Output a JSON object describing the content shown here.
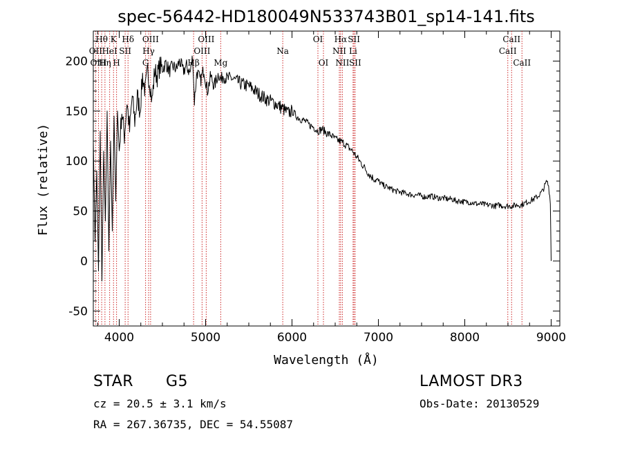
{
  "chart_data": {
    "type": "line",
    "title": "spec-56442-HD180049N533743B01_sp14-141.fits",
    "xlabel": "Wavelength (Å)",
    "ylabel": "Flux (relative)",
    "xlim": [
      3700,
      9100
    ],
    "ylim": [
      -65,
      230
    ],
    "xticks": [
      4000,
      5000,
      6000,
      7000,
      8000,
      9000
    ],
    "yticks": [
      -50,
      0,
      50,
      100,
      150,
      200
    ],
    "series": [
      {
        "name": "spectrum",
        "x": [
          3700,
          3720,
          3740,
          3760,
          3780,
          3800,
          3820,
          3840,
          3860,
          3880,
          3900,
          3920,
          3940,
          3960,
          3980,
          4000,
          4030,
          4060,
          4090,
          4120,
          4150,
          4180,
          4210,
          4240,
          4270,
          4300,
          4330,
          4360,
          4380,
          4410,
          4440,
          4470,
          4500,
          4540,
          4580,
          4620,
          4660,
          4700,
          4740,
          4780,
          4820,
          4850,
          4870,
          4900,
          4940,
          4980,
          5020,
          5060,
          5100,
          5150,
          5180,
          5200,
          5250,
          5300,
          5350,
          5400,
          5450,
          5500,
          5550,
          5600,
          5650,
          5700,
          5750,
          5800,
          5850,
          5900,
          5950,
          6000,
          6050,
          6100,
          6150,
          6200,
          6250,
          6300,
          6350,
          6400,
          6450,
          6500,
          6550,
          6600,
          6650,
          6700,
          6750,
          6800,
          6850,
          6900,
          6950,
          7000,
          7050,
          7100,
          7150,
          7200,
          7250,
          7300,
          7350,
          7400,
          7450,
          7500,
          7550,
          7600,
          7650,
          7700,
          7750,
          7800,
          7850,
          7900,
          7950,
          8000,
          8050,
          8100,
          8150,
          8200,
          8250,
          8300,
          8350,
          8400,
          8450,
          8500,
          8550,
          8600,
          8650,
          8700,
          8750,
          8800,
          8850,
          8900,
          8950,
          8970,
          8990,
          9000
        ],
        "y": [
          120,
          20,
          90,
          -10,
          130,
          -20,
          110,
          40,
          150,
          10,
          120,
          30,
          145,
          60,
          150,
          110,
          150,
          125,
          160,
          130,
          165,
          140,
          165,
          150,
          185,
          170,
          190,
          175,
          160,
          190,
          185,
          195,
          192,
          198,
          190,
          195,
          192,
          200,
          190,
          195,
          188,
          205,
          160,
          190,
          180,
          192,
          170,
          185,
          175,
          188,
          180,
          186,
          182,
          183,
          180,
          178,
          176,
          175,
          172,
          168,
          165,
          162,
          160,
          158,
          155,
          152,
          148,
          150,
          145,
          142,
          140,
          136,
          134,
          130,
          132,
          128,
          126,
          122,
          120,
          118,
          114,
          110,
          104,
          98,
          92,
          86,
          82,
          80,
          76,
          74,
          72,
          70,
          69,
          68,
          67,
          66,
          66,
          65,
          64,
          65,
          64,
          63,
          63,
          62,
          62,
          60,
          60,
          59,
          59,
          58,
          57,
          57,
          56,
          56,
          55,
          56,
          55,
          55,
          55,
          56,
          56,
          58,
          60,
          62,
          65,
          70,
          80,
          75,
          60,
          0
        ]
      }
    ],
    "lines": [
      {
        "name": "Hθ",
        "wl": 3797,
        "row": 1
      },
      {
        "name": "OII",
        "wl": 3727,
        "row": 2
      },
      {
        "name": "OIII",
        "wl": 3760,
        "row": 3
      },
      {
        "name": "K",
        "wl": 3934,
        "row": 1
      },
      {
        "name": "HeI",
        "wl": 3889,
        "row": 2
      },
      {
        "name": "Hη",
        "wl": 3835,
        "row": 3
      },
      {
        "name": "Hδ",
        "wl": 4102,
        "row": 1
      },
      {
        "name": "SII",
        "wl": 4069,
        "row": 2
      },
      {
        "name": "H",
        "wl": 3969,
        "row": 3
      },
      {
        "name": "OIII",
        "wl": 4363,
        "row": 1
      },
      {
        "name": "Hγ",
        "wl": 4340,
        "row": 2
      },
      {
        "name": "G",
        "wl": 4305,
        "row": 3
      },
      {
        "name": "OIII",
        "wl": 5007,
        "row": 1
      },
      {
        "name": "OIII",
        "wl": 4959,
        "row": 2
      },
      {
        "name": "Hβ",
        "wl": 4861,
        "row": 3
      },
      {
        "name": "Mg",
        "wl": 5175,
        "row": 3
      },
      {
        "name": "Na",
        "wl": 5893,
        "row": 2
      },
      {
        "name": "OI",
        "wl": 6300,
        "row": 1
      },
      {
        "name": "OI",
        "wl": 6364,
        "row": 3
      },
      {
        "name": "Hα",
        "wl": 6563,
        "row": 1
      },
      {
        "name": "NII",
        "wl": 6548,
        "row": 2
      },
      {
        "name": "NII",
        "wl": 6583,
        "row": 3
      },
      {
        "name": "SII",
        "wl": 6717,
        "row": 1
      },
      {
        "name": "Li",
        "wl": 6707,
        "row": 2
      },
      {
        "name": "SII",
        "wl": 6731,
        "row": 3
      },
      {
        "name": "CaII",
        "wl": 8542,
        "row": 1
      },
      {
        "name": "CaII",
        "wl": 8498,
        "row": 2
      },
      {
        "name": "CaII",
        "wl": 8662,
        "row": 3
      }
    ]
  },
  "info": {
    "object_class": "STAR",
    "subclass": "G5",
    "survey": "LAMOST DR3",
    "cz": "cz = 20.5 ± 3.1 km/s",
    "obs_date": "Obs-Date: 20130529",
    "coords": "RA = 267.36735, DEC =  54.55087"
  },
  "colors": {
    "line_marker": "#cc2222",
    "spectrum": "#000000",
    "background": "#ffffff"
  }
}
